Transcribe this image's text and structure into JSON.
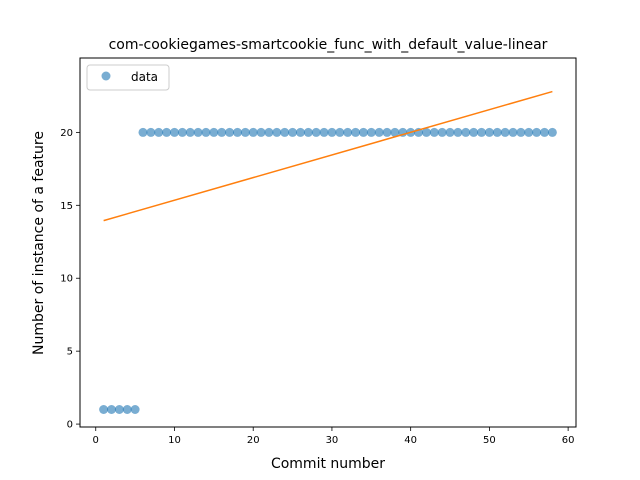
{
  "chart_data": {
    "type": "scatter",
    "title": "com-cookiegames-smartcookie_func_with_default_value-linear",
    "xlabel": "Commit number",
    "ylabel": "Number of instance of a feature",
    "xlim": [
      -2,
      61
    ],
    "ylim": [
      -0.2,
      25.1
    ],
    "xticks": [
      0,
      10,
      20,
      30,
      40,
      50,
      60
    ],
    "yticks": [
      0,
      5,
      10,
      15,
      20
    ],
    "grid": false,
    "legend_position": "top-left",
    "series": [
      {
        "name": "data",
        "kind": "scatter",
        "color": "#1f77b4",
        "x": [
          1,
          2,
          3,
          4,
          5,
          6,
          7,
          8,
          9,
          10,
          11,
          12,
          13,
          14,
          15,
          16,
          17,
          18,
          19,
          20,
          21,
          22,
          23,
          24,
          25,
          26,
          27,
          28,
          29,
          30,
          31,
          32,
          33,
          34,
          35,
          36,
          37,
          38,
          39,
          40,
          41,
          42,
          43,
          44,
          45,
          46,
          47,
          48,
          49,
          50,
          51,
          52,
          53,
          54,
          55,
          56,
          57,
          58
        ],
        "y": [
          1,
          1,
          1,
          1,
          1,
          20,
          20,
          20,
          20,
          20,
          20,
          20,
          20,
          20,
          20,
          20,
          20,
          20,
          20,
          20,
          20,
          20,
          20,
          20,
          20,
          20,
          20,
          20,
          20,
          20,
          20,
          20,
          20,
          20,
          20,
          20,
          20,
          20,
          20,
          20,
          20,
          20,
          20,
          20,
          20,
          20,
          20,
          20,
          20,
          20,
          20,
          20,
          20,
          20,
          20,
          20,
          20,
          20
        ]
      },
      {
        "kind": "line",
        "color": "#ff7f0e",
        "x": [
          1,
          58
        ],
        "y": [
          13.95,
          22.8
        ]
      }
    ]
  }
}
